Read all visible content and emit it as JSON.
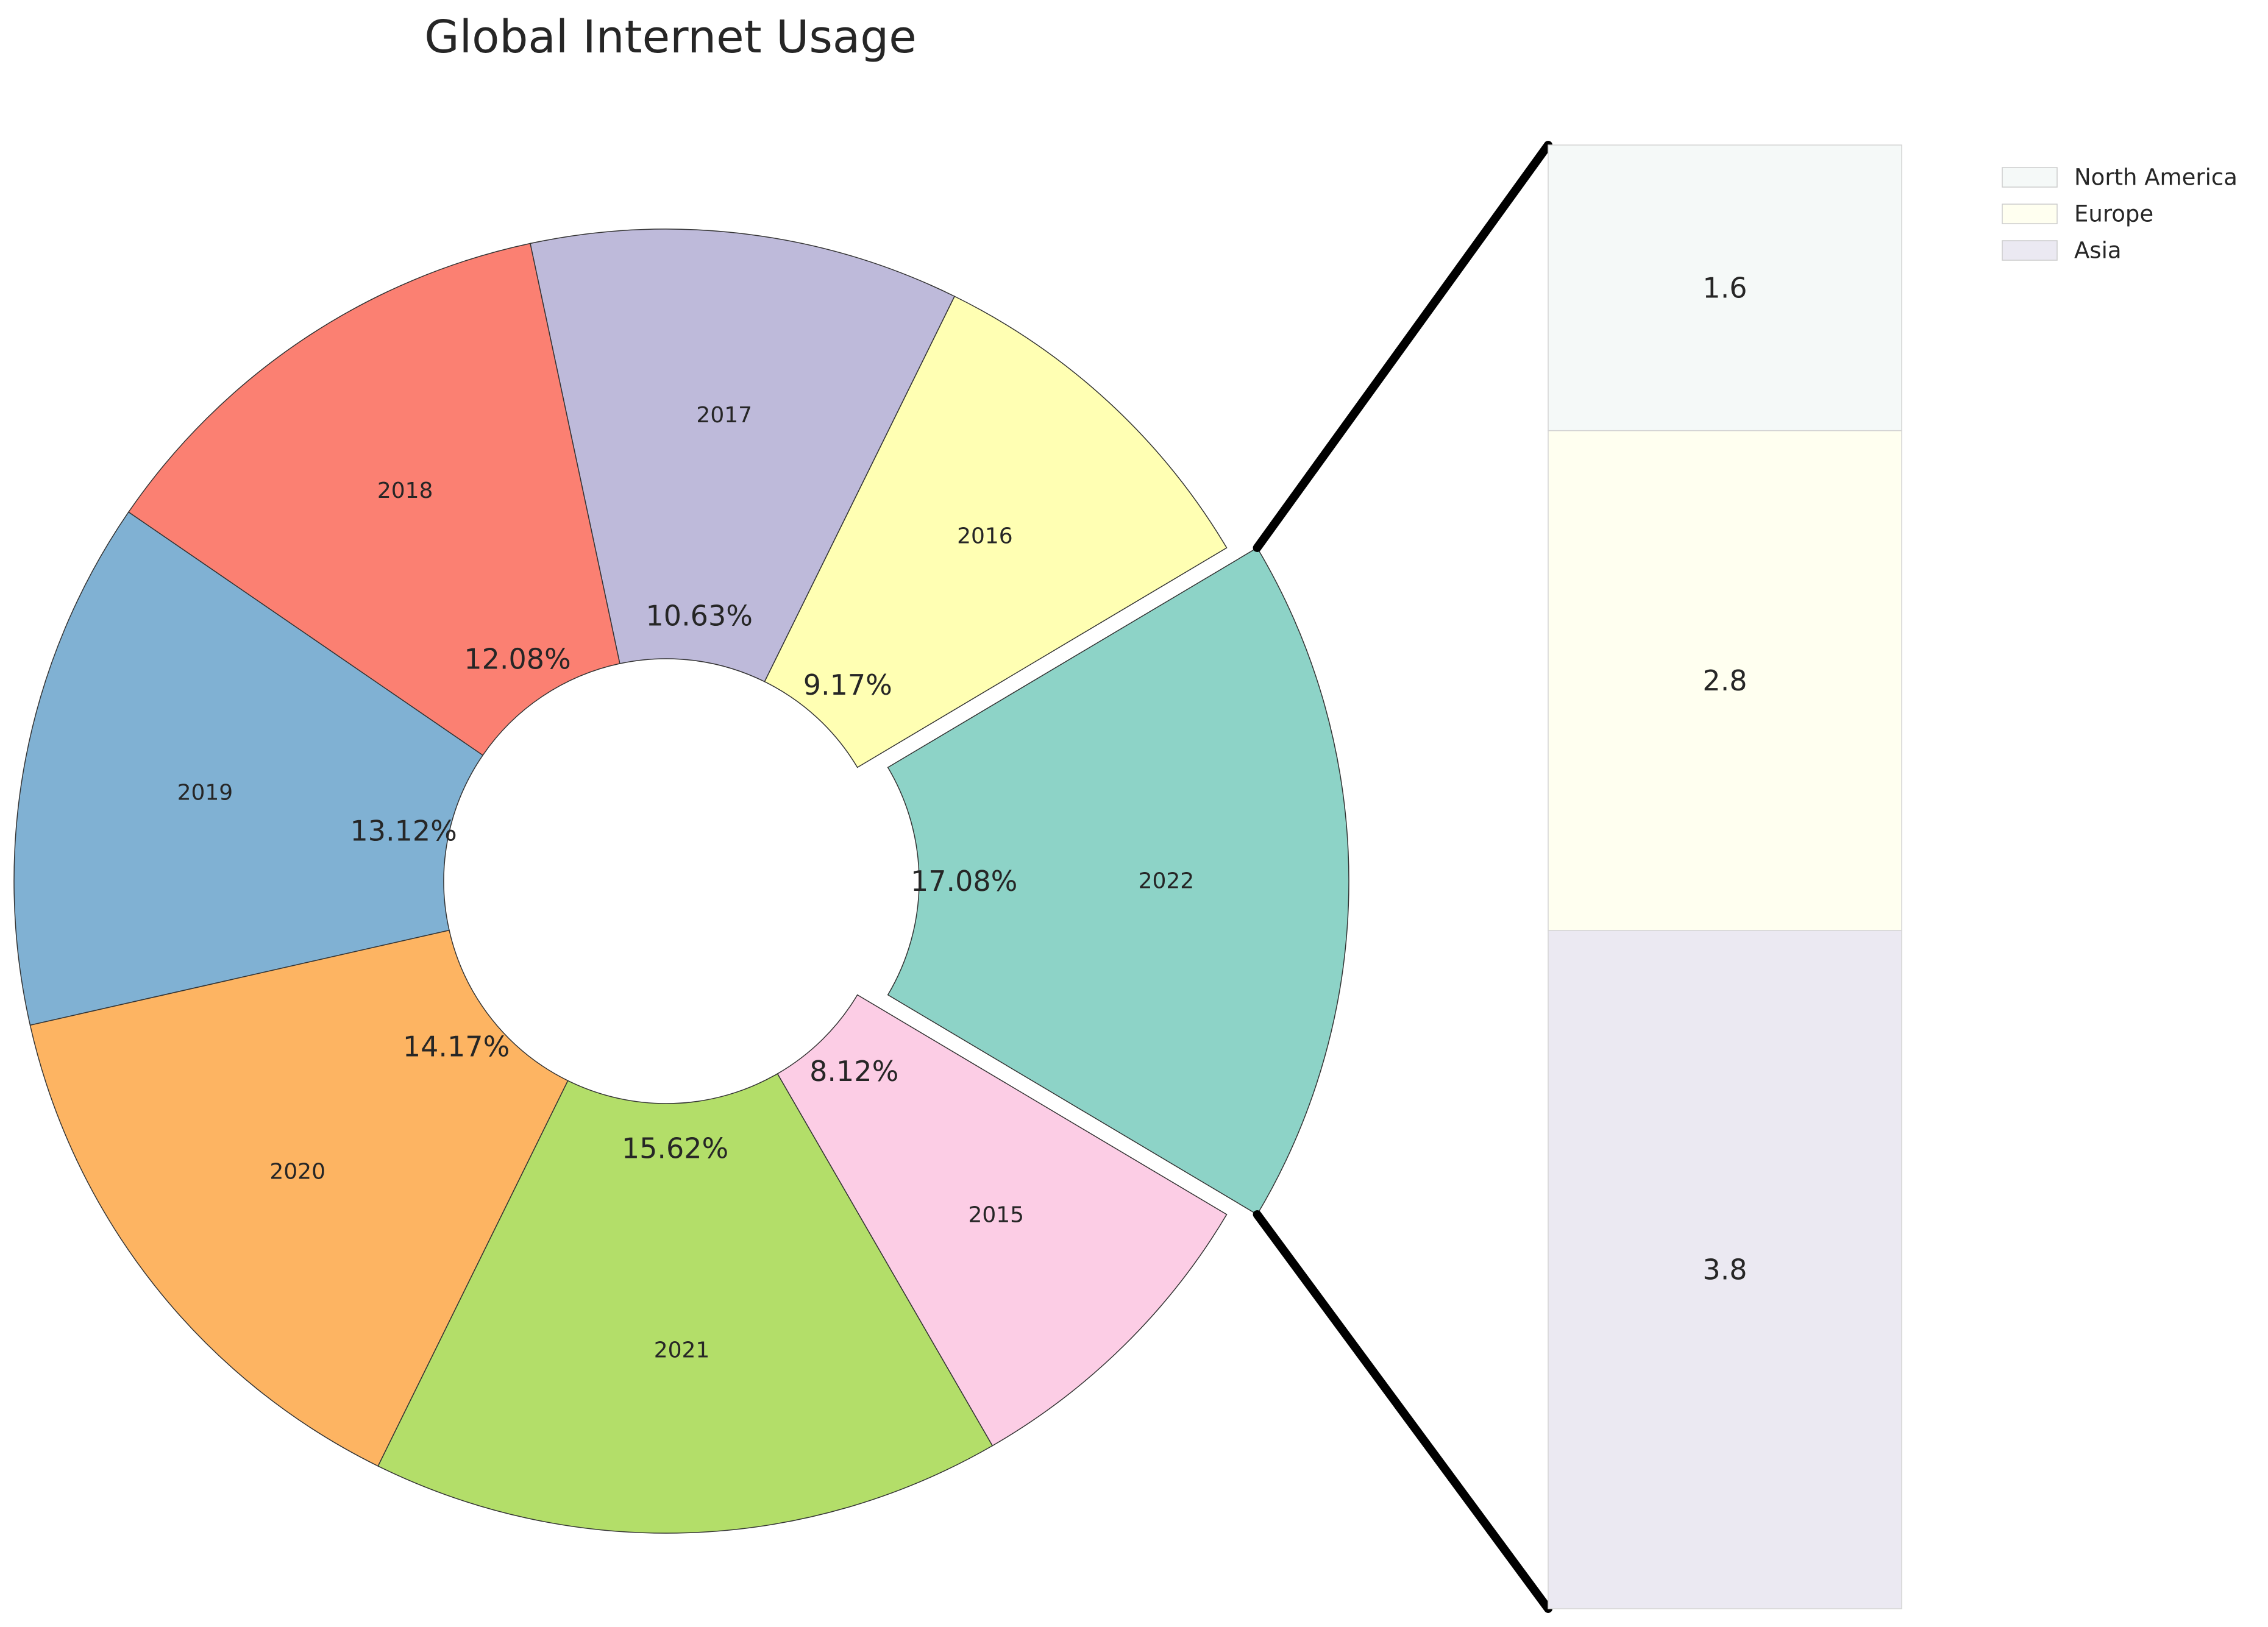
{
  "chart_data": [
    {
      "type": "pie",
      "title": "Global Internet Usage",
      "categories": [
        "2022",
        "2016",
        "2017",
        "2018",
        "2019",
        "2020",
        "2021",
        "2015"
      ],
      "values": [
        17.08,
        9.17,
        10.63,
        12.08,
        13.12,
        14.17,
        15.62,
        8.12
      ],
      "value_labels": [
        "17.08%",
        "9.17%",
        "10.63%",
        "12.08%",
        "13.12%",
        "14.17%",
        "15.62%",
        "8.12%"
      ],
      "colors": [
        "#8dd3c7",
        "#ffffb3",
        "#bebada",
        "#fb8072",
        "#80b1d3",
        "#fdb462",
        "#b3de69",
        "#fccde5"
      ],
      "donut": true,
      "exploded": "2022"
    },
    {
      "type": "bar",
      "stacked": true,
      "categories": [
        "North America",
        "Europe",
        "Asia"
      ],
      "values": [
        1.6,
        2.8,
        3.8
      ],
      "value_labels": [
        "1.6",
        "2.8",
        "3.8"
      ],
      "colors": [
        "#f5f9f8",
        "#fffff0",
        "#ebe9f2"
      ],
      "legend": {
        "entries": [
          "North America",
          "Europe",
          "Asia"
        ],
        "placement": "top-right"
      }
    }
  ]
}
